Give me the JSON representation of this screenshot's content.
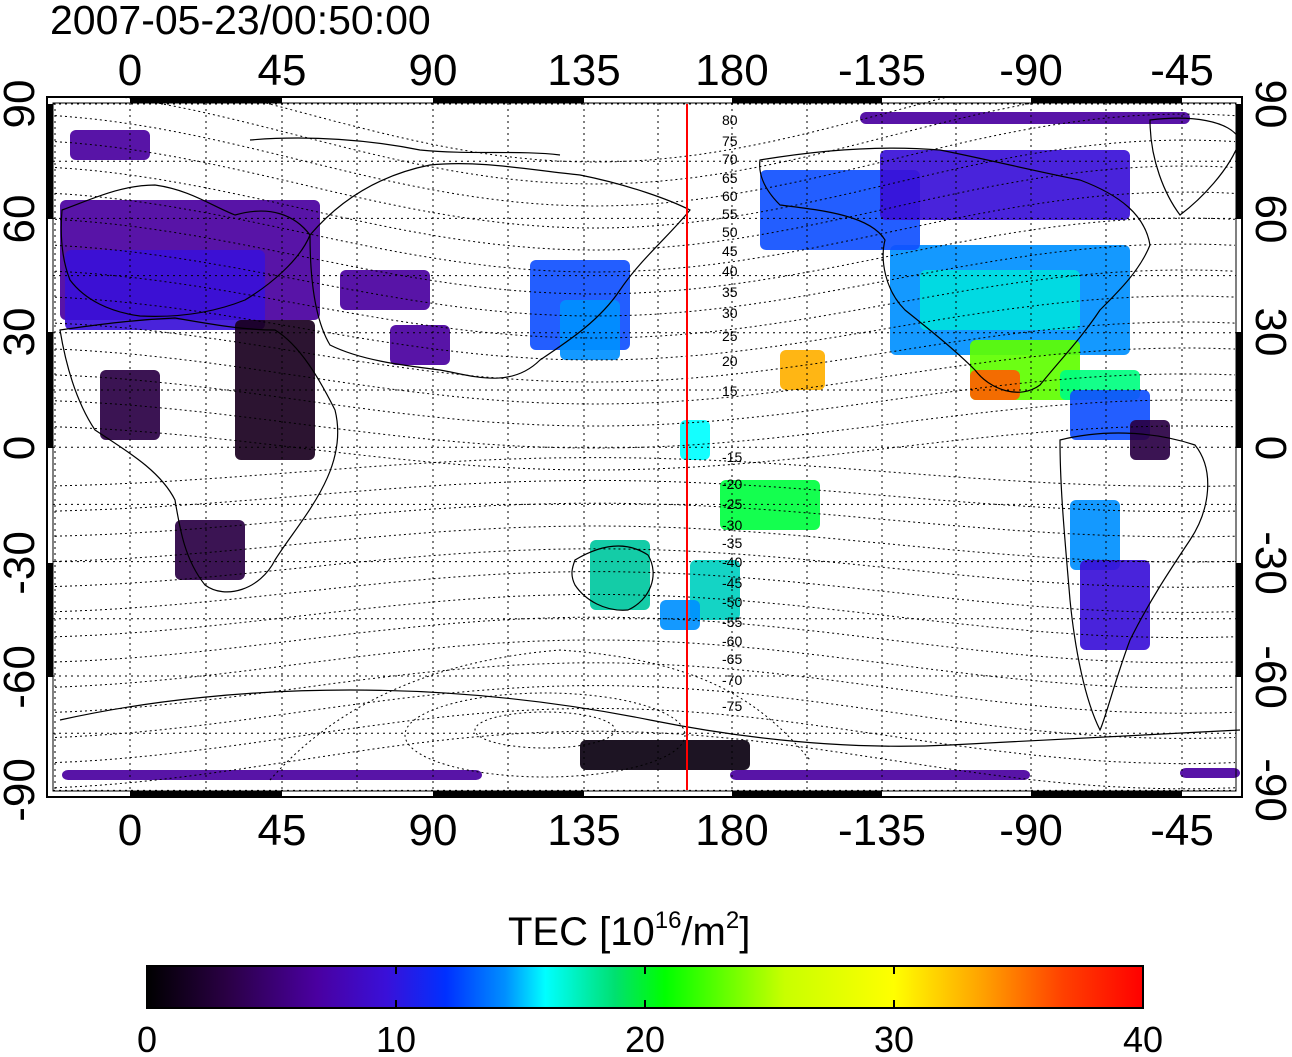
{
  "header": {
    "timestamp": "2007-05-23/00:50:00"
  },
  "map": {
    "top_lon_labels": [
      "0",
      "45",
      "90",
      "135",
      "180",
      "-135",
      "-90",
      "-45"
    ],
    "bottom_lon_labels": [
      "0",
      "45",
      "90",
      "135",
      "180",
      "-135",
      "-90",
      "-45"
    ],
    "left_lat_labels": [
      "90",
      "60",
      "30",
      "0",
      "-30",
      "-60",
      "-90"
    ],
    "right_lat_labels": [
      "90",
      "60",
      "30",
      "0",
      "-30",
      "-60",
      "-90"
    ],
    "contour_labels": [
      "80",
      "75",
      "70",
      "65",
      "60",
      "55",
      "50",
      "45",
      "40",
      "35",
      "30",
      "25",
      "20",
      "15",
      "-15",
      "-20",
      "-25",
      "-30",
      "-35",
      "-40",
      "-45",
      "-50",
      "-55",
      "-60",
      "-65",
      "-70",
      "-75"
    ],
    "colors": {
      "meridian_line": "#ff0000",
      "frame": "#000000"
    }
  },
  "colorbar": {
    "title_prefix": "TEC  [10",
    "title_exp1": "16",
    "title_mid": "/m",
    "title_exp2": "2",
    "title_suffix": "]",
    "tick_labels": [
      "0",
      "10",
      "20",
      "30",
      "40"
    ],
    "min": 0,
    "max": 40,
    "colors": [
      "#000000",
      "#2a0044",
      "#4a00a0",
      "#3a10d8",
      "#0030ff",
      "#0090ff",
      "#00ffff",
      "#00e070",
      "#00ff00",
      "#c8ff00",
      "#ffff00",
      "#ffa000",
      "#ff4000",
      "#ff0000"
    ]
  }
}
